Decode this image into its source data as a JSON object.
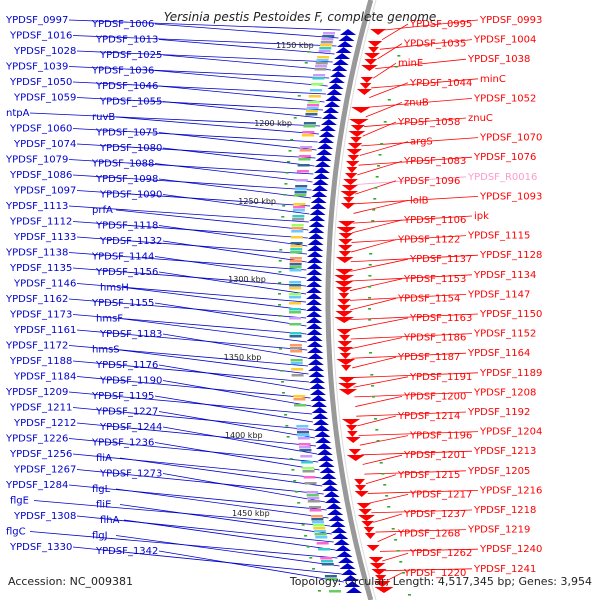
{
  "title": "Yersinia pestis Pestoides F, complete genome",
  "footer": {
    "accession": "Accession: NC_009381",
    "stats": "Topology: circular; Length: 4,517,345 bp; Genes: 3,954"
  },
  "colors": {
    "forward": "#0000cc",
    "reverse": "#ff0000",
    "rna": "#ff99cc",
    "backbone": "#999999",
    "orf": "#33aa33"
  },
  "ticks": [
    "1150 kbp",
    "1200 kbp",
    "1250 kbp",
    "1300 kbp",
    "1350 kbp",
    "1400 kbp",
    "1450 kbp"
  ],
  "left_labels": [
    "YPDSF_0997",
    "YPDSF_1006",
    "YPDSF_1016",
    "YPDSF_1013",
    "YPDSF_1028",
    "YPDSF_1025",
    "YPDSF_1039",
    "YPDSF_1036",
    "YPDSF_1050",
    "YPDSF_1046",
    "YPDSF_1059",
    "YPDSF_1055",
    "ntpA",
    "ruvB",
    "YPDSF_1060",
    "YPDSF_1075",
    "YPDSF_1074",
    "YPDSF_1080",
    "YPDSF_1079",
    "YPDSF_1088",
    "YPDSF_1086",
    "YPDSF_1098",
    "YPDSF_1097",
    "YPDSF_1090",
    "YPDSF_1113",
    "prfA",
    "YPDSF_1112",
    "YPDSF_1118",
    "YPDSF_1133",
    "YPDSF_1132",
    "YPDSF_1138",
    "YPDSF_1144",
    "YPDSF_1135",
    "YPDSF_1156",
    "YPDSF_1146",
    "hmsH",
    "YPDSF_1162",
    "YPDSF_1155",
    "YPDSF_1173",
    "hmsF",
    "YPDSF_1161",
    "YPDSF_1183",
    "YPDSF_1172",
    "hmsS",
    "YPDSF_1188",
    "YPDSF_1176",
    "YPDSF_1184",
    "YPDSF_1190",
    "YPDSF_1209",
    "YPDSF_1195",
    "YPDSF_1211",
    "YPDSF_1227",
    "YPDSF_1212",
    "YPDSF_1244",
    "YPDSF_1226",
    "YPDSF_1236",
    "YPDSF_1256",
    "fliA",
    "YPDSF_1267",
    "YPDSF_1273",
    "YPDSF_1284",
    "flgL",
    "flgE",
    "fliE",
    "YPDSF_1308",
    "flhA",
    "flgC",
    "flgJ",
    "YPDSF_1330",
    "YPDSF_1342"
  ],
  "right_labels": [
    "YPDSF_0993",
    "YPDSF_0995",
    "YPDSF_1004",
    "YPDSF_1035",
    "YPDSF_1038",
    "minE",
    "minC",
    "YPDSF_1044",
    "YPDSF_1052",
    "znuB",
    "znuC",
    "YPDSF_1058",
    "YPDSF_1070",
    "argS",
    "YPDSF_1076",
    "YPDSF_1083",
    "YPDSF_R0016",
    "YPDSF_1096",
    "YPDSF_1093",
    "lolB",
    "ipk",
    "YPDSF_1106",
    "YPDSF_1115",
    "YPDSF_1122",
    "YPDSF_1128",
    "YPDSF_1137",
    "YPDSF_1134",
    "YPDSF_1153",
    "YPDSF_1147",
    "YPDSF_1154",
    "YPDSF_1150",
    "YPDSF_1163",
    "YPDSF_1152",
    "YPDSF_1186",
    "YPDSF_1164",
    "YPDSF_1187",
    "YPDSF_1189",
    "YPDSF_1191",
    "YPDSF_1208",
    "YPDSF_1200",
    "YPDSF_1192",
    "YPDSF_1214",
    "YPDSF_1204",
    "YPDSF_1196",
    "YPDSF_1213",
    "YPDSF_1201",
    "YPDSF_1205",
    "YPDSF_1215",
    "YPDSF_1216",
    "YPDSF_1217",
    "YPDSF_1218",
    "YPDSF_1237",
    "YPDSF_1219",
    "YPDSF_1268",
    "YPDSF_1240",
    "YPDSF_1262",
    "YPDSF_1241",
    "YPDSF_1220"
  ]
}
